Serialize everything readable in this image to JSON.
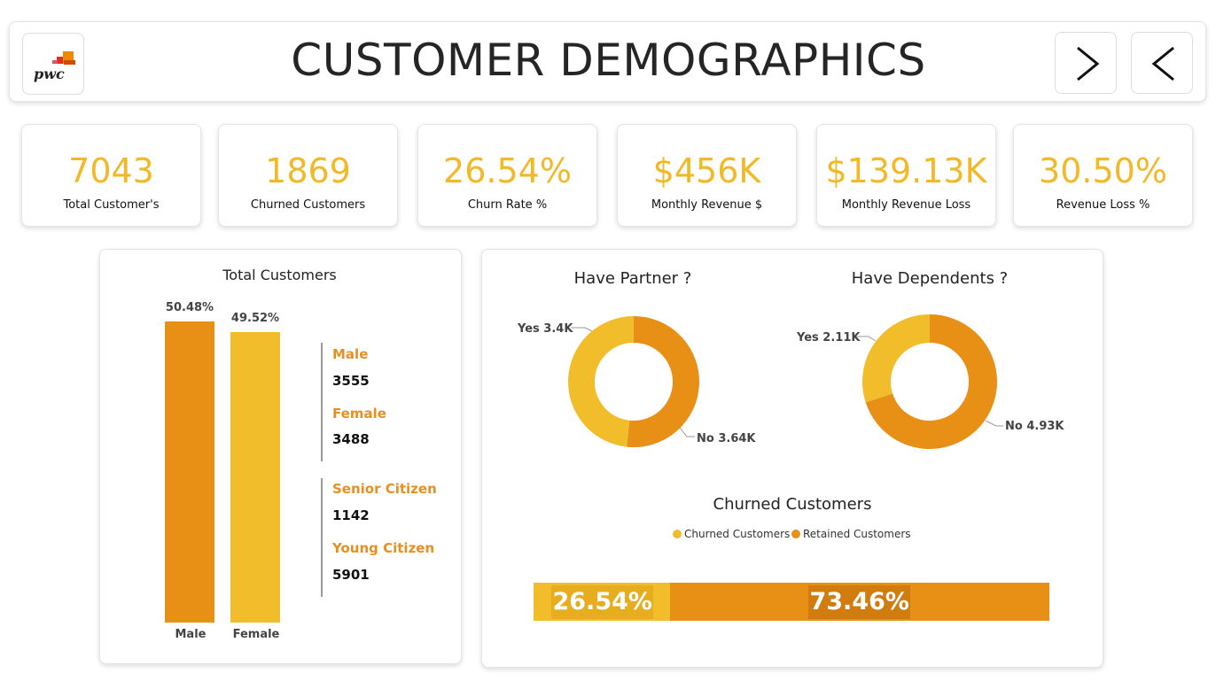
{
  "header": {
    "title": "CUSTOMER DEMOGRAPHICS",
    "logo_text": "pwc"
  },
  "kpis": [
    {
      "value": "7043",
      "label": "Total Customer's"
    },
    {
      "value": "1869",
      "label": "Churned Customers"
    },
    {
      "value": "26.54%",
      "label": "Churn Rate %"
    },
    {
      "value": "$456K",
      "label": "Monthly Revenue $"
    },
    {
      "value": "$139.13K",
      "label": "Monthly Revenue Loss"
    },
    {
      "value": "30.50%",
      "label": "Revenue Loss %"
    }
  ],
  "gender": {
    "title": "Total Customers",
    "bars": [
      {
        "category": "Male",
        "pct_label": "50.48%",
        "value": 50.48
      },
      {
        "category": "Female",
        "pct_label": "49.52%",
        "value": 49.52
      }
    ],
    "stats": [
      {
        "label": "Male",
        "value": "3555"
      },
      {
        "label": "Female",
        "value": "3488"
      },
      {
        "label": "Senior Citizen",
        "value": "1142"
      },
      {
        "label": "Young Citizen",
        "value": "5901"
      }
    ]
  },
  "partner": {
    "title": "Have Partner ?",
    "yes_label": "Yes 3.4K",
    "no_label": "No 3.64K",
    "yes": 3.4,
    "no": 3.64
  },
  "dependents": {
    "title": "Have Dependents ?",
    "yes_label": "Yes 2.11K",
    "no_label": "No 4.93K",
    "yes": 2.11,
    "no": 4.93
  },
  "churn": {
    "title": "Churned Customers",
    "legend": [
      {
        "name": "Churned Customers",
        "color": "#f2bd2b"
      },
      {
        "name": "Retained Customers",
        "color": "#e88f16"
      }
    ],
    "churned_label": "26.54%",
    "retained_label": "73.46%",
    "churned": 26.54,
    "retained": 73.46
  },
  "colors": {
    "accent": "#f1b928",
    "orange": "#e88f16",
    "yellow": "#f2bd2b"
  }
}
